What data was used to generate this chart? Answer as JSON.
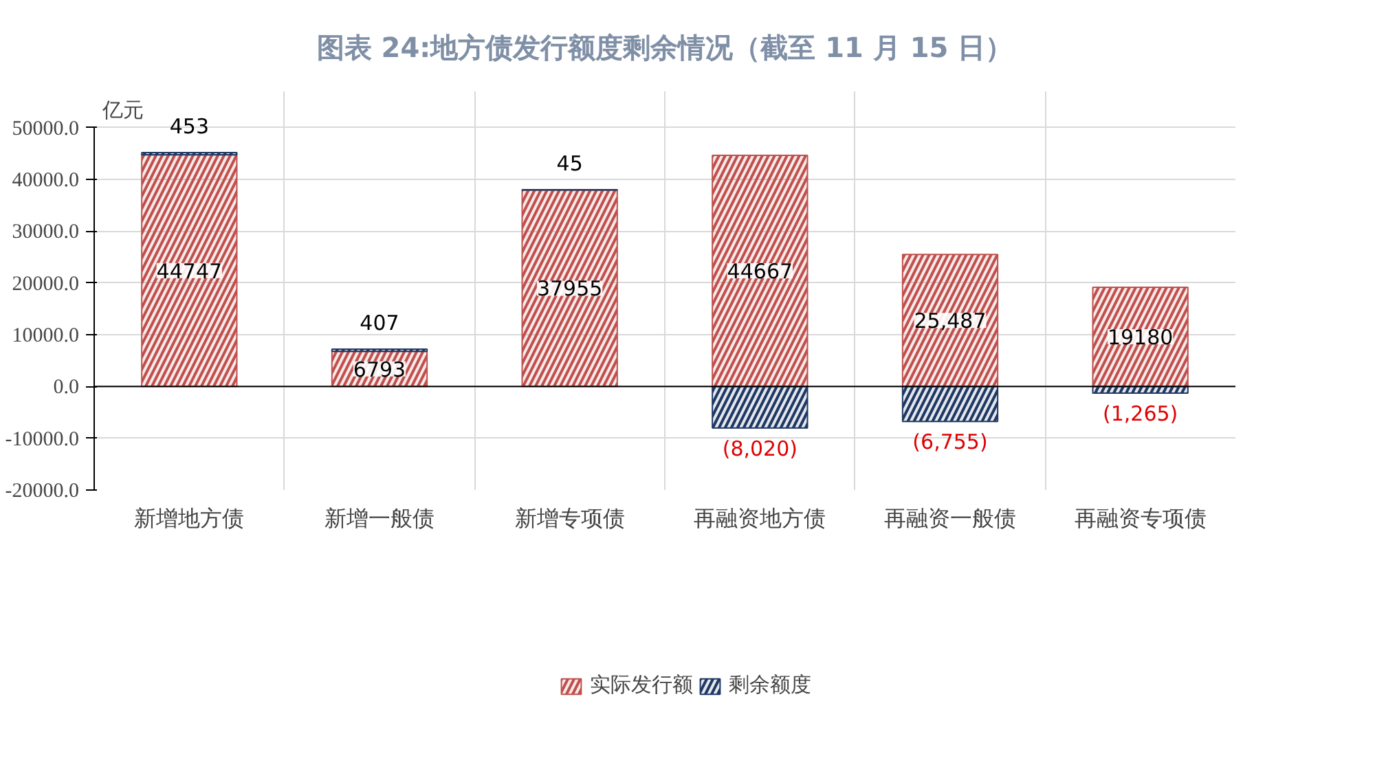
{
  "chart_data": {
    "type": "bar",
    "stacked": true,
    "title": "图表 24:地方债发行额度剩余情况（截至 11 月 15 日）",
    "categories": [
      "新增地方债",
      "新增一般债",
      "新增专项债",
      "再融资地方债",
      "再融资一般债",
      "再融资专项债"
    ],
    "series": [
      {
        "name": "实际发行额",
        "color": "#c0504d",
        "values": [
          44747,
          6793,
          37955,
          44667,
          25487,
          19180
        ],
        "value_labels": [
          "44747",
          "6793",
          "37955",
          "44667",
          "25,487",
          "19180"
        ]
      },
      {
        "name": "剩余额度",
        "color": "#1f3864",
        "values": [
          453,
          407,
          45,
          -8020,
          -6755,
          -1265
        ],
        "value_labels": [
          "453",
          "407",
          "45",
          "(8,020)",
          "(6,755)",
          "(1,265)"
        ]
      }
    ],
    "ylim": [
      -20000,
      50000
    ],
    "yticks": [
      {
        "value": -20000,
        "label": "-20000.0"
      },
      {
        "value": -10000,
        "label": "-10000.0"
      },
      {
        "value": 0,
        "label": "0.0"
      },
      {
        "value": 10000,
        "label": "10000.0"
      },
      {
        "value": 20000,
        "label": "20000.0"
      },
      {
        "value": 30000,
        "label": "30000.0"
      },
      {
        "value": 40000,
        "label": "40000.0"
      },
      {
        "value": 50000,
        "label": "50000.0"
      }
    ],
    "annotations": [
      "亿元"
    ],
    "grid": true,
    "legend": "bottom"
  }
}
